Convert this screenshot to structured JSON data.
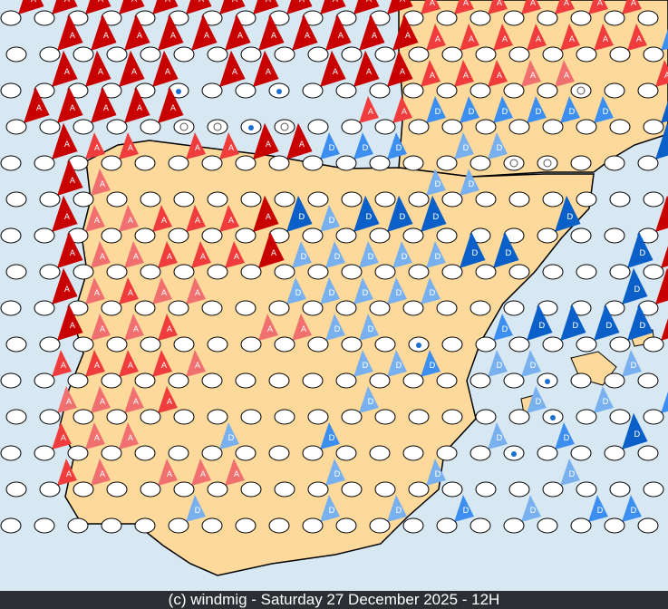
{
  "footer": {
    "caption": "(c) windmig - Saturday 27 December 2025 - 12H"
  },
  "colors": {
    "sea": "#d8e8f3",
    "land": "#fdd99b",
    "A_strong": "#c80000",
    "A_weak": "#f03c3c",
    "A_light": "#f07070",
    "D_strong": "#0a5fc8",
    "D_weak": "#3c8ef0",
    "D_light": "#78b0f0"
  },
  "legend_codes": {
    "o": "plain",
    "A": "high-strong",
    "a": "high-weak",
    "b": "high-light",
    "D": "low-strong",
    "d": "low-weak",
    "e": "low-light",
    "r": "rain-icon",
    "s": "snow-icon"
  },
  "marker_letters": {
    "high": "A",
    "low": "D"
  },
  "grid_rows": [
    "AAAAAAAAAAAAaaaaaaao",
    "oAAAAAAAAAAAaaaaaaad",
    "oAAAArAArAAAaaabbsoa",
    "AAAAAssrsoaaddddddoD",
    "oAaaoaaAAdddoeessooD",
    "oAboooooooooeeoooooo",
    "oAbbaaaADeDDDoooDooA",
    "oAbbaaaAeeeeeDDoooDA",
    "oAbabbooeeeeeoooooDA",
    "oAbbaoobbeeorodDDDDA",
    "oaaaabooooeedoeeroeo",
    "obbbaoooooeooooereod",
    "oabbooeoodooooerdoDo",
    "oabobbbooeooeoooeooo",
    "oooooeoooeoeodoeoddo"
  ]
}
